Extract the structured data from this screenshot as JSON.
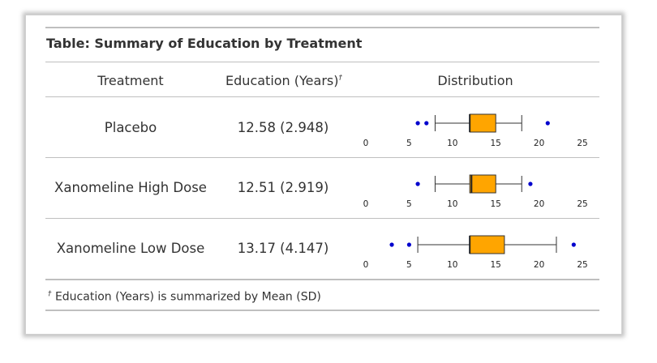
{
  "table": {
    "title": "Table: Summary of Education by Treatment",
    "headers": {
      "treatment": "Treatment",
      "education": "Education (Years)",
      "education_mark": "†",
      "distribution": "Distribution"
    },
    "rows": [
      {
        "treatment": "Placebo",
        "education": "12.58 (2.948)"
      },
      {
        "treatment": "Xanomeline High Dose",
        "education": "12.51 (2.919)"
      },
      {
        "treatment": "Xanomeline Low Dose",
        "education": "13.17 (4.147)"
      }
    ],
    "footnote_mark": "†",
    "footnote": "Education (Years) is summarized by Mean (SD)"
  },
  "chart_data": [
    {
      "type": "boxplot",
      "name": "Placebo",
      "x_ticks": [
        0,
        5,
        10,
        15,
        20,
        25
      ],
      "xlim": [
        0,
        25
      ],
      "whisker_low": 8,
      "q1": 12,
      "median": 12,
      "q3": 15,
      "whisker_high": 18,
      "outliers": [
        6,
        7,
        21
      ],
      "box_color": "#FFA500",
      "outlier_color": "#0000CD"
    },
    {
      "type": "boxplot",
      "name": "Xanomeline High Dose",
      "x_ticks": [
        0,
        5,
        10,
        15,
        20,
        25
      ],
      "xlim": [
        0,
        25
      ],
      "whisker_low": 8,
      "q1": 12,
      "median": 12.2,
      "q3": 15,
      "whisker_high": 18,
      "outliers": [
        6,
        19
      ],
      "box_color": "#FFA500",
      "outlier_color": "#0000CD"
    },
    {
      "type": "boxplot",
      "name": "Xanomeline Low Dose",
      "x_ticks": [
        0,
        5,
        10,
        15,
        20,
        25
      ],
      "xlim": [
        0,
        25
      ],
      "whisker_low": 6,
      "q1": 12,
      "median": 12,
      "q3": 16,
      "whisker_high": 22,
      "outliers": [
        3,
        5,
        24
      ],
      "box_color": "#FFA500",
      "outlier_color": "#0000CD"
    }
  ]
}
